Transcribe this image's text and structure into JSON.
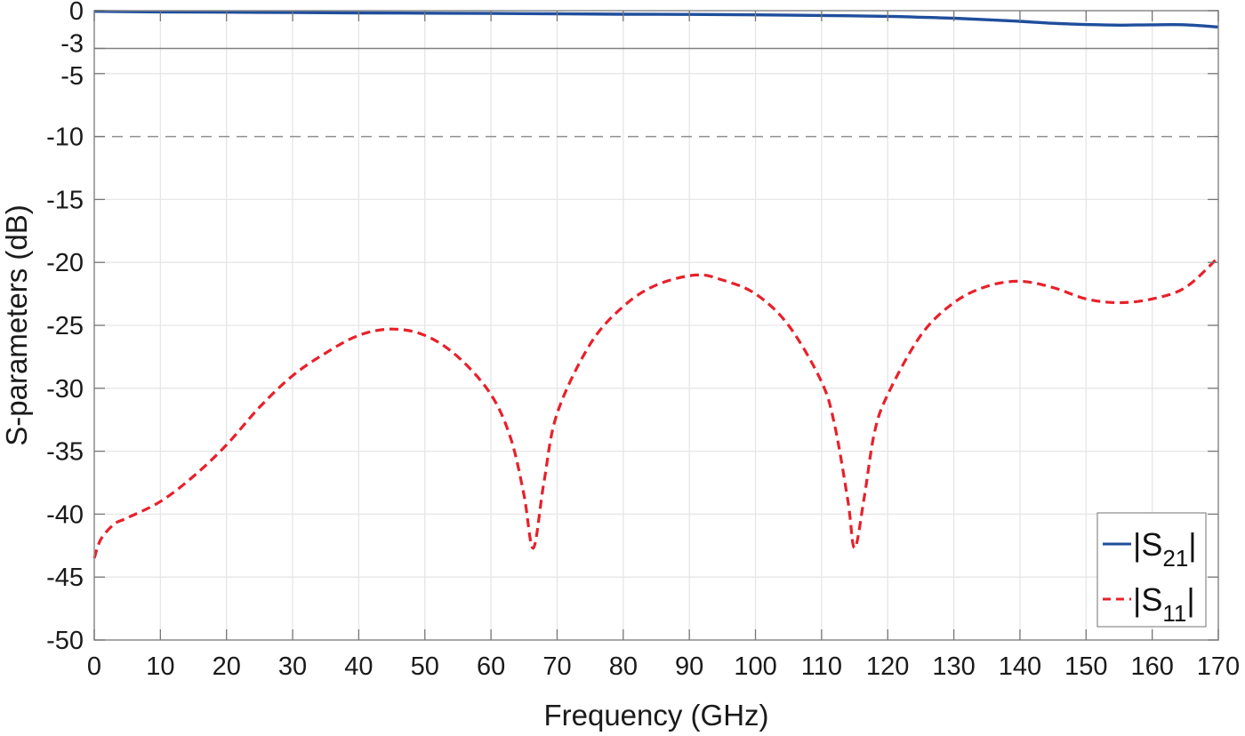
{
  "chart_data": {
    "type": "line",
    "title": "",
    "xlabel": "Frequency (GHz)",
    "ylabel": "S-parameters (dB)",
    "xlim": [
      0,
      170
    ],
    "ylim": [
      -50,
      0
    ],
    "x_ticks": [
      0,
      10,
      20,
      30,
      40,
      50,
      60,
      70,
      80,
      90,
      100,
      110,
      120,
      130,
      140,
      150,
      160,
      170
    ],
    "y_ticks": [
      0,
      -3,
      -5,
      -10,
      -15,
      -20,
      -25,
      -30,
      -35,
      -40,
      -45,
      -50
    ],
    "grid": true,
    "reference_lines": [
      {
        "y": -3,
        "style": "solid",
        "color": "#808080"
      },
      {
        "y": -10,
        "style": "dashed",
        "color": "#909090"
      }
    ],
    "legend_position": "lower right",
    "series": [
      {
        "name": "|S21|",
        "label_main": "|S",
        "label_sub": "21",
        "label_end": "|",
        "color": "#1f4e9c",
        "style": "solid",
        "x": [
          0,
          10,
          20,
          30,
          40,
          50,
          60,
          70,
          80,
          90,
          100,
          110,
          120,
          125,
          130,
          135,
          140,
          145,
          150,
          155,
          160,
          165,
          170
        ],
        "values": [
          -0.05,
          -0.1,
          -0.12,
          -0.15,
          -0.18,
          -0.2,
          -0.22,
          -0.25,
          -0.28,
          -0.3,
          -0.33,
          -0.38,
          -0.45,
          -0.52,
          -0.6,
          -0.72,
          -0.85,
          -1.0,
          -1.1,
          -1.15,
          -1.12,
          -1.12,
          -1.3
        ]
      },
      {
        "name": "|S11|",
        "label_main": "|S",
        "label_sub": "11",
        "label_end": "|",
        "color": "#e8202a",
        "style": "dashed",
        "x": [
          0,
          1,
          3,
          5,
          10,
          15,
          20,
          25,
          30,
          35,
          40,
          45,
          50,
          55,
          60,
          63,
          65,
          66.4,
          68,
          70,
          75,
          80,
          85,
          91,
          95,
          100,
          105,
          110,
          112,
          114,
          115,
          116.5,
          118,
          120,
          125,
          130,
          135,
          140,
          145,
          150,
          155,
          160,
          165,
          170
        ],
        "values": [
          -43.5,
          -42,
          -40.8,
          -40.3,
          -39,
          -37,
          -34.5,
          -31.5,
          -29,
          -27.2,
          -25.8,
          -25.3,
          -25.8,
          -27.5,
          -30.5,
          -34,
          -38.5,
          -42.7,
          -37.5,
          -32,
          -26.5,
          -23.5,
          -21.8,
          -21,
          -21.4,
          -22.5,
          -25,
          -29.5,
          -33,
          -39,
          -42.7,
          -38.5,
          -33.5,
          -30.5,
          -25.8,
          -23.2,
          -21.9,
          -21.5,
          -22,
          -22.9,
          -23.2,
          -22.9,
          -22,
          -19.6
        ]
      }
    ]
  }
}
